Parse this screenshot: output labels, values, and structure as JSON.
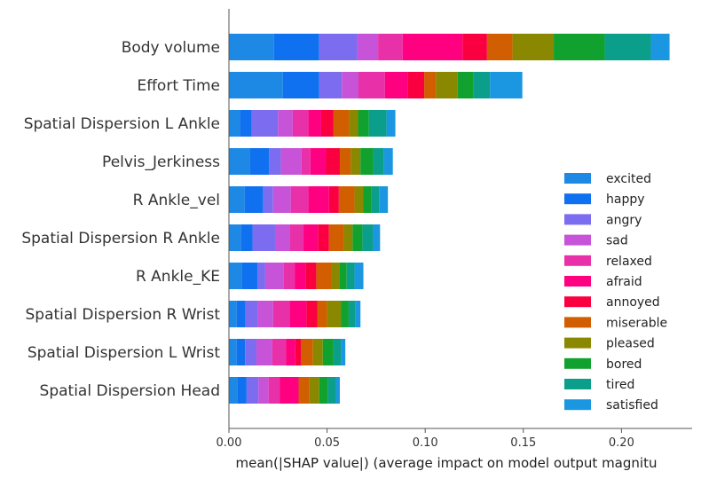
{
  "chart_data": {
    "type": "bar",
    "orientation": "horizontal",
    "stacked": true,
    "title": "",
    "ylabel": "",
    "xlabel": "mean(|SHAP value|) (average impact on model output magnitu",
    "xlim": [
      0,
      0.236
    ],
    "xticks": [
      0.0,
      0.05,
      0.1,
      0.15,
      0.2
    ],
    "xtick_labels": [
      "0.00",
      "0.05",
      "0.10",
      "0.15",
      "0.20"
    ],
    "legend_position": "lower-right",
    "grid": false,
    "categories": [
      "Body volume",
      "Effort Time",
      "Spatial Dispersion L Ankle",
      "Pelvis_Jerkiness",
      "R Ankle_vel",
      "Spatial Dispersion R Ankle",
      "R Ankle_KE",
      "Spatial Dispersion R Wrist",
      "Spatial Dispersion L Wrist",
      "Spatial Dispersion Head"
    ],
    "series": [
      {
        "name": "excited",
        "color": "#1E88E5",
        "values": [
          0.023,
          0.0275,
          0.0055,
          0.0105,
          0.008,
          0.006,
          0.0065,
          0.004,
          0.004,
          0.0045
        ]
      },
      {
        "name": "happy",
        "color": "#1071F0",
        "values": [
          0.023,
          0.0185,
          0.006,
          0.01,
          0.0095,
          0.006,
          0.008,
          0.0045,
          0.0042,
          0.0045
        ]
      },
      {
        "name": "angry",
        "color": "#7C6CEF",
        "values": [
          0.0195,
          0.0115,
          0.0135,
          0.006,
          0.005,
          0.0115,
          0.004,
          0.006,
          0.0058,
          0.006
        ]
      },
      {
        "name": "sad",
        "color": "#C653D8",
        "values": [
          0.0105,
          0.0085,
          0.0075,
          0.0105,
          0.009,
          0.0075,
          0.0095,
          0.008,
          0.008,
          0.0052
        ]
      },
      {
        "name": "relaxed",
        "color": "#E830A8",
        "values": [
          0.0125,
          0.0135,
          0.008,
          0.0045,
          0.009,
          0.007,
          0.0055,
          0.0085,
          0.007,
          0.0058
        ]
      },
      {
        "name": "afraid",
        "color": "#FF0080",
        "values": [
          0.0305,
          0.0115,
          0.0065,
          0.008,
          0.0105,
          0.0075,
          0.0055,
          0.0085,
          0.0048,
          0.0095
        ]
      },
      {
        "name": "annoyed",
        "color": "#FA0041",
        "values": [
          0.0125,
          0.0085,
          0.0063,
          0.007,
          0.005,
          0.0055,
          0.0055,
          0.0055,
          0.003,
          0.0
        ]
      },
      {
        "name": "miserable",
        "color": "#D15E00",
        "values": [
          0.013,
          0.006,
          0.008,
          0.0055,
          0.008,
          0.0075,
          0.0075,
          0.005,
          0.006,
          0.0055
        ]
      },
      {
        "name": "pleased",
        "color": "#8A8800",
        "values": [
          0.021,
          0.011,
          0.0045,
          0.005,
          0.0045,
          0.0045,
          0.0045,
          0.007,
          0.005,
          0.005
        ]
      },
      {
        "name": "bored",
        "color": "#10A12E",
        "values": [
          0.026,
          0.008,
          0.0055,
          0.0065,
          0.004,
          0.005,
          0.0035,
          0.004,
          0.0055,
          0.0045
        ]
      },
      {
        "name": "tired",
        "color": "#0B9E8A",
        "values": [
          0.0235,
          0.0085,
          0.009,
          0.0055,
          0.004,
          0.0055,
          0.004,
          0.0035,
          0.004,
          0.004
        ]
      },
      {
        "name": "satisfied",
        "color": "#1A97E0",
        "values": [
          0.0095,
          0.0165,
          0.0045,
          0.0045,
          0.0045,
          0.0035,
          0.0045,
          0.0025,
          0.002,
          0.002
        ]
      }
    ]
  }
}
